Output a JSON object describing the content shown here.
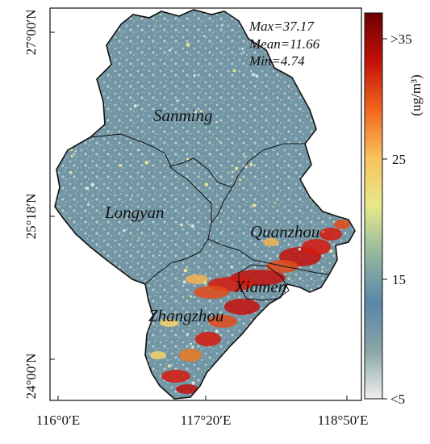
{
  "stats": {
    "max": "Max=37.17",
    "mean": "Mean=11.66",
    "min": "Min=4.74"
  },
  "regions": [
    {
      "name": "Sanming"
    },
    {
      "name": "Longyan"
    },
    {
      "name": "Quanzhou"
    },
    {
      "name": "Xiamen"
    },
    {
      "name": "Zhangzhou"
    }
  ],
  "axes": {
    "x_ticks": [
      "116°0′E",
      "117°20′E",
      "118°50′E"
    ],
    "y_ticks": [
      "27°00′N",
      "25°18′N",
      "24°00′N"
    ]
  },
  "colorbar": {
    "unit_label": "(ug/m³)",
    "ticks": [
      ">35",
      "25",
      "15",
      "<5"
    ],
    "range": [
      5,
      35
    ],
    "colors": [
      "#efefef",
      "#8aa5a7",
      "#5a86a8",
      "#93b7a0",
      "#e7e98a",
      "#f8c25c",
      "#f2651d",
      "#c4100a",
      "#6d0000"
    ]
  },
  "palette": {
    "land_base": "#6f93a3",
    "land_light": "#c8d6d6",
    "hotspot": "#d51a0c",
    "boundary": "#111111"
  }
}
